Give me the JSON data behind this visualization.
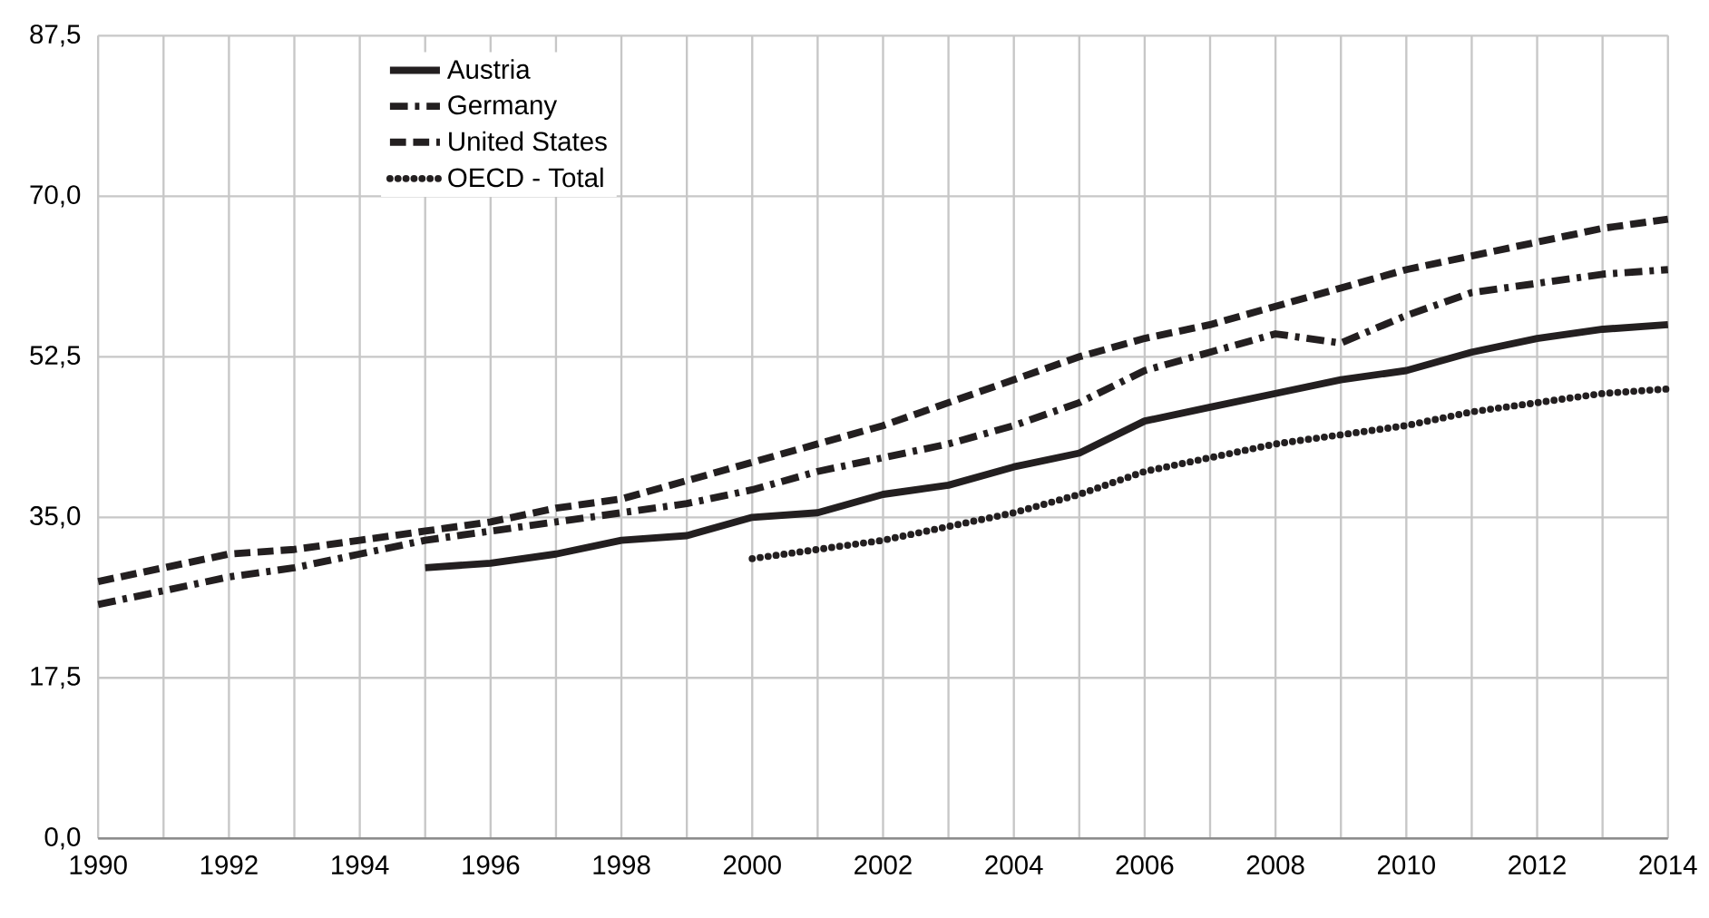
{
  "chart_data": {
    "type": "line",
    "xlim": [
      1990,
      2014
    ],
    "xticks": [
      1990,
      1992,
      1994,
      1996,
      1998,
      2000,
      2002,
      2004,
      2006,
      2008,
      2010,
      2012,
      2014
    ],
    "ylim": [
      0,
      87.5
    ],
    "yticks": [
      {
        "value": 0,
        "label": "0,0"
      },
      {
        "value": 17.5,
        "label": "17,5"
      },
      {
        "value": 35,
        "label": "35,0"
      },
      {
        "value": 52.5,
        "label": "52,5"
      },
      {
        "value": 70,
        "label": "70,0"
      },
      {
        "value": 87.5,
        "label": "87,5"
      }
    ],
    "grid": true,
    "legend": "top left",
    "marker": "none",
    "series": [
      {
        "name": "Austria",
        "color": "#231f20",
        "line_style": "solid",
        "x": [
          1995,
          1996,
          1997,
          1998,
          1999,
          2000,
          2001,
          2002,
          2003,
          2004,
          2005,
          2006,
          2007,
          2008,
          2009,
          2010,
          2011,
          2012,
          2013,
          2014
        ],
        "values": [
          29.5,
          30,
          31,
          32.5,
          33,
          35,
          35.5,
          37.5,
          38.5,
          40.5,
          42,
          45.5,
          47,
          48.5,
          50,
          51,
          53,
          54.5,
          55.5,
          56
        ]
      },
      {
        "name": "Germany",
        "color": "#231f20",
        "line_style": "dashdot",
        "x": [
          1990,
          1991,
          1992,
          1993,
          1994,
          1995,
          1996,
          1997,
          1998,
          1999,
          2000,
          2001,
          2002,
          2003,
          2004,
          2005,
          2006,
          2007,
          2008,
          2009,
          2010,
          2011,
          2012,
          2013,
          2014
        ],
        "values": [
          25.5,
          27,
          28.5,
          29.5,
          31,
          32.5,
          33.5,
          34.5,
          35.5,
          36.5,
          38,
          40,
          41.5,
          43,
          45,
          47.5,
          51,
          53,
          55,
          54,
          57,
          59.5,
          60.5,
          61.5,
          62
        ]
      },
      {
        "name": "United States",
        "color": "#231f20",
        "line_style": "dashed",
        "x": [
          1990,
          1991,
          1992,
          1993,
          1994,
          1995,
          1996,
          1997,
          1998,
          1999,
          2000,
          2001,
          2002,
          2003,
          2004,
          2005,
          2006,
          2007,
          2008,
          2009,
          2010,
          2011,
          2012,
          2013,
          2014
        ],
        "values": [
          28,
          29.5,
          31,
          31.5,
          32.5,
          33.5,
          34.5,
          36,
          37,
          39,
          41,
          43,
          45,
          47.5,
          50,
          52.5,
          54.5,
          56,
          58,
          60,
          62,
          63.5,
          65,
          66.5,
          67.5
        ]
      },
      {
        "name": "OECD - Total",
        "color": "#231f20",
        "line_style": "dotted",
        "x": [
          2000,
          2001,
          2002,
          2003,
          2004,
          2005,
          2006,
          2007,
          2008,
          2009,
          2010,
          2011,
          2012,
          2013,
          2014
        ],
        "values": [
          30.5,
          31.5,
          32.5,
          34,
          35.5,
          37.5,
          40,
          41.5,
          43,
          44,
          45,
          46.5,
          47.5,
          48.5,
          49
        ]
      }
    ]
  }
}
